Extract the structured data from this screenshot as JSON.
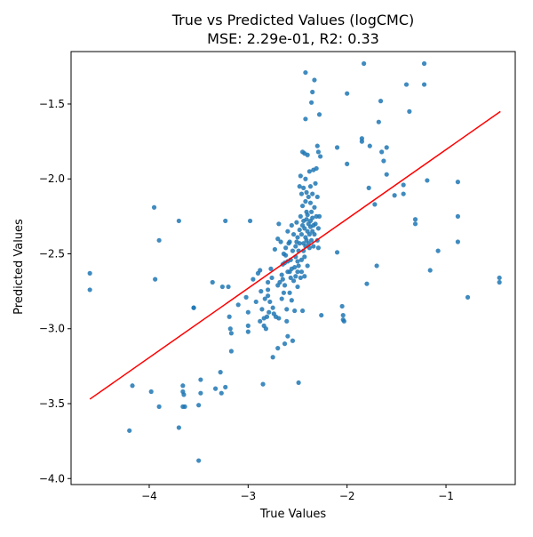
{
  "chart_data": {
    "type": "scatter",
    "title": "True vs Predicted Values (logCMC)",
    "subtitle": "MSE: 2.29e-01, R2: 0.33",
    "xlabel": "True Values",
    "ylabel": "Predicted Values",
    "xlim": [
      -4.79,
      -0.3
    ],
    "ylim": [
      -4.04,
      -1.15
    ],
    "x_ticks": [
      -4,
      -3,
      -2,
      -1
    ],
    "x_tick_labels": [
      "−4",
      "−3",
      "−2",
      "−1"
    ],
    "y_ticks": [
      -4.0,
      -3.5,
      -3.0,
      -2.5,
      -2.0,
      -1.5
    ],
    "y_tick_labels": [
      "−4.0",
      "−3.5",
      "−3.0",
      "−2.5",
      "−2.0",
      "−1.5"
    ],
    "grid": false,
    "colors": {
      "points": "#1f77b4",
      "fit_line": "#ff0000"
    },
    "fit_line": {
      "x": [
        -4.6,
        -0.45
      ],
      "y": [
        -3.47,
        -1.55
      ]
    },
    "series": [
      {
        "points": [
          [
            -4.6,
            -2.63
          ],
          [
            -4.6,
            -2.74
          ],
          [
            -4.2,
            -3.68
          ],
          [
            -4.17,
            -3.38
          ],
          [
            -3.98,
            -3.42
          ],
          [
            -3.95,
            -2.19
          ],
          [
            -3.94,
            -2.67
          ],
          [
            -3.9,
            -2.41
          ],
          [
            -3.9,
            -3.52
          ],
          [
            -3.7,
            -2.28
          ],
          [
            -3.7,
            -3.66
          ],
          [
            -3.66,
            -3.38
          ],
          [
            -3.66,
            -3.42
          ],
          [
            -3.65,
            -3.44
          ],
          [
            -3.64,
            -3.52
          ],
          [
            -3.66,
            -3.52
          ],
          [
            -3.5,
            -3.88
          ],
          [
            -3.5,
            -3.51
          ],
          [
            -3.48,
            -3.34
          ],
          [
            -3.48,
            -3.43
          ],
          [
            -3.55,
            -2.86
          ],
          [
            -3.55,
            -2.86
          ],
          [
            -3.36,
            -2.69
          ],
          [
            -3.33,
            -3.4
          ],
          [
            -3.28,
            -3.29
          ],
          [
            -3.27,
            -3.43
          ],
          [
            -3.26,
            -2.72
          ],
          [
            -3.23,
            -3.39
          ],
          [
            -3.23,
            -2.28
          ],
          [
            -3.2,
            -2.72
          ],
          [
            -3.19,
            -2.92
          ],
          [
            -3.18,
            -3.0
          ],
          [
            -3.17,
            -3.03
          ],
          [
            -3.17,
            -3.15
          ],
          [
            -3.1,
            -2.84
          ],
          [
            -3.02,
            -2.79
          ],
          [
            -3.0,
            -2.98
          ],
          [
            -3.0,
            -2.89
          ],
          [
            -3.0,
            -3.02
          ],
          [
            -2.98,
            -2.28
          ],
          [
            -2.95,
            -2.67
          ],
          [
            -2.92,
            -2.82
          ],
          [
            -2.9,
            -2.63
          ],
          [
            -2.88,
            -2.95
          ],
          [
            -2.88,
            -2.61
          ],
          [
            -2.87,
            -2.75
          ],
          [
            -2.86,
            -2.87
          ],
          [
            -2.85,
            -3.37
          ],
          [
            -2.84,
            -2.93
          ],
          [
            -2.84,
            -2.98
          ],
          [
            -2.83,
            -2.8
          ],
          [
            -2.82,
            -3.0
          ],
          [
            -2.81,
            -2.92
          ],
          [
            -2.8,
            -2.78
          ],
          [
            -2.8,
            -2.69
          ],
          [
            -2.8,
            -2.74
          ],
          [
            -2.79,
            -2.89
          ],
          [
            -2.78,
            -2.82
          ],
          [
            -2.77,
            -2.6
          ],
          [
            -2.76,
            -2.66
          ],
          [
            -2.75,
            -2.86
          ],
          [
            -2.75,
            -3.19
          ],
          [
            -2.74,
            -2.9
          ],
          [
            -2.73,
            -2.47
          ],
          [
            -2.72,
            -2.92
          ],
          [
            -2.7,
            -2.4
          ],
          [
            -2.7,
            -2.71
          ],
          [
            -2.7,
            -3.13
          ],
          [
            -2.69,
            -2.93
          ],
          [
            -2.69,
            -2.3
          ],
          [
            -2.68,
            -2.69
          ],
          [
            -2.67,
            -2.42
          ],
          [
            -2.66,
            -2.64
          ],
          [
            -2.66,
            -2.8
          ],
          [
            -2.65,
            -2.57
          ],
          [
            -2.65,
            -2.67
          ],
          [
            -2.64,
            -2.5
          ],
          [
            -2.64,
            -2.76
          ],
          [
            -2.63,
            -2.56
          ],
          [
            -2.63,
            -2.71
          ],
          [
            -2.63,
            -3.1
          ],
          [
            -2.62,
            -2.46
          ],
          [
            -2.62,
            -2.51
          ],
          [
            -2.61,
            -2.87
          ],
          [
            -2.61,
            -2.95
          ],
          [
            -2.6,
            -2.55
          ],
          [
            -2.6,
            -2.62
          ],
          [
            -2.6,
            -2.35
          ],
          [
            -2.6,
            -3.05
          ],
          [
            -2.59,
            -2.43
          ],
          [
            -2.58,
            -2.62
          ],
          [
            -2.58,
            -2.76
          ],
          [
            -2.58,
            -2.42
          ],
          [
            -2.57,
            -2.66
          ],
          [
            -2.57,
            -2.54
          ],
          [
            -2.56,
            -2.31
          ],
          [
            -2.56,
            -2.6
          ],
          [
            -2.56,
            -2.81
          ],
          [
            -2.55,
            -3.08
          ],
          [
            -2.55,
            -2.48
          ],
          [
            -2.54,
            -2.68
          ],
          [
            -2.54,
            -2.37
          ],
          [
            -2.53,
            -2.59
          ],
          [
            -2.53,
            -2.88
          ],
          [
            -2.52,
            -2.45
          ],
          [
            -2.52,
            -2.52
          ],
          [
            -2.52,
            -2.65
          ],
          [
            -2.51,
            -2.29
          ],
          [
            -2.51,
            -2.42
          ],
          [
            -2.5,
            -2.55
          ],
          [
            -2.5,
            -2.62
          ],
          [
            -2.5,
            -2.39
          ],
          [
            -2.5,
            -2.72
          ],
          [
            -2.49,
            -2.48
          ],
          [
            -2.49,
            -2.58
          ],
          [
            -2.49,
            -3.36
          ],
          [
            -2.48,
            -2.34
          ],
          [
            -2.48,
            -2.43
          ],
          [
            -2.48,
            -2.05
          ],
          [
            -2.47,
            -1.98
          ],
          [
            -2.47,
            -2.66
          ],
          [
            -2.47,
            -2.25
          ],
          [
            -2.46,
            -2.54
          ],
          [
            -2.46,
            -2.37
          ],
          [
            -2.46,
            -2.1
          ],
          [
            -2.46,
            -2.62
          ],
          [
            -2.45,
            -2.31
          ],
          [
            -2.45,
            -2.18
          ],
          [
            -2.45,
            -1.82
          ],
          [
            -2.45,
            -2.88
          ],
          [
            -2.44,
            -2.43
          ],
          [
            -2.44,
            -2.48
          ],
          [
            -2.44,
            -2.06
          ],
          [
            -2.44,
            -2.28
          ],
          [
            -2.43,
            -2.52
          ],
          [
            -2.43,
            -2.33
          ],
          [
            -2.43,
            -1.83
          ],
          [
            -2.43,
            -2.65
          ],
          [
            -2.42,
            -2.39
          ],
          [
            -2.42,
            -2.15
          ],
          [
            -2.42,
            -2.0
          ],
          [
            -2.42,
            -2.45
          ],
          [
            -2.42,
            -1.6
          ],
          [
            -2.42,
            -1.29
          ],
          [
            -2.41,
            -2.27
          ],
          [
            -2.41,
            -2.22
          ],
          [
            -2.41,
            -2.41
          ],
          [
            -2.41,
            -2.09
          ],
          [
            -2.4,
            -2.35
          ],
          [
            -2.4,
            -2.58
          ],
          [
            -2.4,
            -1.84
          ],
          [
            -2.4,
            -2.24
          ],
          [
            -2.39,
            -2.43
          ],
          [
            -2.39,
            -2.3
          ],
          [
            -2.39,
            -2.12
          ],
          [
            -2.38,
            -2.37
          ],
          [
            -2.38,
            -2.46
          ],
          [
            -2.38,
            -1.95
          ],
          [
            -2.37,
            -2.28
          ],
          [
            -2.37,
            -2.16
          ],
          [
            -2.37,
            -2.32
          ],
          [
            -2.37,
            -2.05
          ],
          [
            -2.36,
            -2.41
          ],
          [
            -2.36,
            -2.22
          ],
          [
            -2.36,
            -1.49
          ],
          [
            -2.35,
            -2.35
          ],
          [
            -2.35,
            -1.42
          ],
          [
            -2.35,
            -2.26
          ],
          [
            -2.35,
            -2.1
          ],
          [
            -2.34,
            -1.94
          ],
          [
            -2.34,
            -2.31
          ],
          [
            -2.34,
            -2.45
          ],
          [
            -2.33,
            -1.34
          ],
          [
            -2.33,
            -2.37
          ],
          [
            -2.33,
            -2.19
          ],
          [
            -2.32,
            -2.03
          ],
          [
            -2.32,
            -2.3
          ],
          [
            -2.31,
            -1.93
          ],
          [
            -2.31,
            -2.25
          ],
          [
            -2.3,
            -2.41
          ],
          [
            -2.3,
            -2.12
          ],
          [
            -2.3,
            -1.78
          ],
          [
            -2.29,
            -1.82
          ],
          [
            -2.29,
            -2.33
          ],
          [
            -2.29,
            -2.46
          ],
          [
            -2.28,
            -1.57
          ],
          [
            -2.28,
            -2.25
          ],
          [
            -2.27,
            -1.85
          ],
          [
            -2.26,
            -2.91
          ],
          [
            -2.1,
            -1.79
          ],
          [
            -2.1,
            -2.49
          ],
          [
            -2.05,
            -2.85
          ],
          [
            -2.04,
            -2.91
          ],
          [
            -2.04,
            -2.94
          ],
          [
            -2.03,
            -2.95
          ],
          [
            -2.0,
            -1.43
          ],
          [
            -2.0,
            -1.9
          ],
          [
            -1.85,
            -1.73
          ],
          [
            -1.85,
            -1.75
          ],
          [
            -1.83,
            -1.23
          ],
          [
            -1.8,
            -2.7
          ],
          [
            -1.78,
            -2.06
          ],
          [
            -1.77,
            -1.78
          ],
          [
            -1.72,
            -2.17
          ],
          [
            -1.7,
            -2.58
          ],
          [
            -1.68,
            -1.62
          ],
          [
            -1.66,
            -1.48
          ],
          [
            -1.65,
            -1.82
          ],
          [
            -1.63,
            -1.88
          ],
          [
            -1.6,
            -1.97
          ],
          [
            -1.6,
            -1.79
          ],
          [
            -1.52,
            -2.11
          ],
          [
            -1.43,
            -2.04
          ],
          [
            -1.43,
            -2.1
          ],
          [
            -1.4,
            -1.37
          ],
          [
            -1.37,
            -1.55
          ],
          [
            -1.31,
            -2.27
          ],
          [
            -1.31,
            -2.3
          ],
          [
            -1.22,
            -1.23
          ],
          [
            -1.22,
            -1.37
          ],
          [
            -1.19,
            -2.01
          ],
          [
            -1.16,
            -2.61
          ],
          [
            -1.08,
            -2.48
          ],
          [
            -0.88,
            -2.02
          ],
          [
            -0.88,
            -2.25
          ],
          [
            -0.88,
            -2.42
          ],
          [
            -0.78,
            -2.79
          ],
          [
            -0.46,
            -2.66
          ],
          [
            -0.46,
            -2.69
          ]
        ]
      }
    ]
  }
}
